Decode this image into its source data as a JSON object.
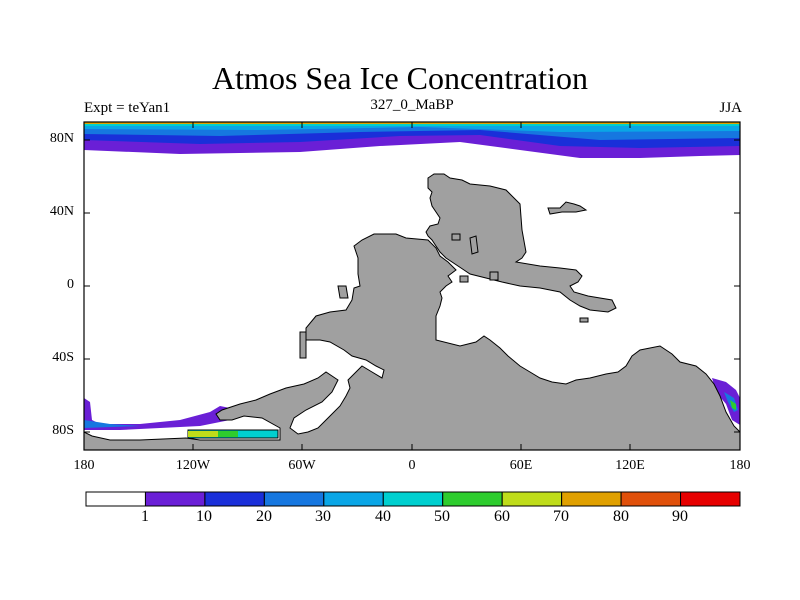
{
  "title": "Atmos Sea Ice Concentration",
  "subtitle_left": "Expt = teYan1",
  "subtitle_center": "327_0_MaBP",
  "subtitle_right": "JJA",
  "lat_labels": [
    "80N",
    "40N",
    "0",
    "40S",
    "80S"
  ],
  "lon_labels": [
    "180",
    "120W",
    "60W",
    "0",
    "60E",
    "120E",
    "180"
  ],
  "colorbar": {
    "labels": [
      "1",
      "10",
      "20",
      "30",
      "40",
      "50",
      "60",
      "70",
      "80",
      "90"
    ],
    "colors": [
      "#ffffff",
      "#6a1fd6",
      "#1a2fd9",
      "#1677e0",
      "#0aa6e6",
      "#00cfcf",
      "#2ecc2e",
      "#bfdc1a",
      "#e0a000",
      "#e0500a",
      "#e60000"
    ]
  },
  "colors": {
    "land": "#a0a0a0",
    "ocean": "#ffffff"
  }
}
